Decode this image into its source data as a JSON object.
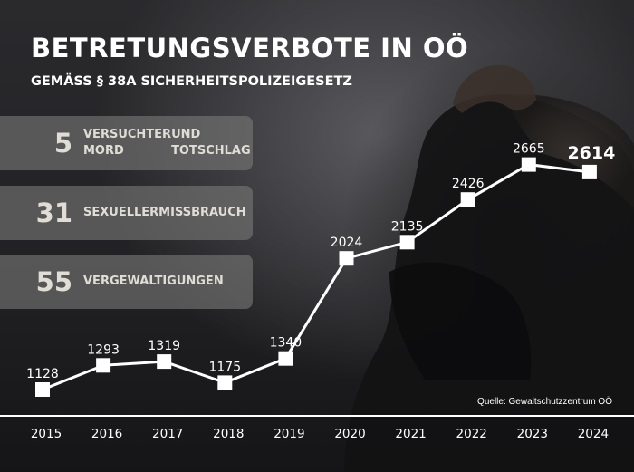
{
  "header": {
    "title": "BETRETUNGSVERBOTE IN OÖ",
    "subtitle": "GEMÄSS § 38A SICHERHEITSPOLIZEIGESETZ"
  },
  "stats": [
    {
      "value": "5",
      "line1": "VERSUCHTER MORD",
      "line2": "UND TOTSCHLAG"
    },
    {
      "value": "31",
      "line1": "SEXUELLER",
      "line2": "MISSBRAUCH"
    },
    {
      "value": "55",
      "line1": "VERGEWALTIGUNGEN",
      "line2": ""
    }
  ],
  "source": "Quelle: Gewaltschutzzentrum OÖ",
  "colors": {
    "line": "#ffffff",
    "marker": "#ffffff",
    "stat_box": "#78786f",
    "stat_text": "#e0ddd6"
  },
  "chart_data": {
    "type": "line",
    "title": "BETRETUNGSVERBOTE IN OÖ",
    "subtitle": "GEMÄSS § 38A SICHERHEITSPOLIZEIGESETZ",
    "xlabel": "",
    "ylabel": "",
    "categories": [
      "2015",
      "2016",
      "2017",
      "2018",
      "2019",
      "2020",
      "2021",
      "2022",
      "2023",
      "2024"
    ],
    "series": [
      {
        "name": "Betretungsverbote",
        "values": [
          1128,
          1293,
          1319,
          1175,
          1340,
          2024,
          2135,
          2426,
          2665,
          2614
        ],
        "labels": [
          "1128",
          "1293",
          "1319",
          "1175",
          "1340",
          "2024",
          "2135",
          "2426",
          "2665",
          "2614"
        ]
      }
    ],
    "ylim": [
      1000,
      2800
    ],
    "grid": false,
    "highlight_last": true
  }
}
